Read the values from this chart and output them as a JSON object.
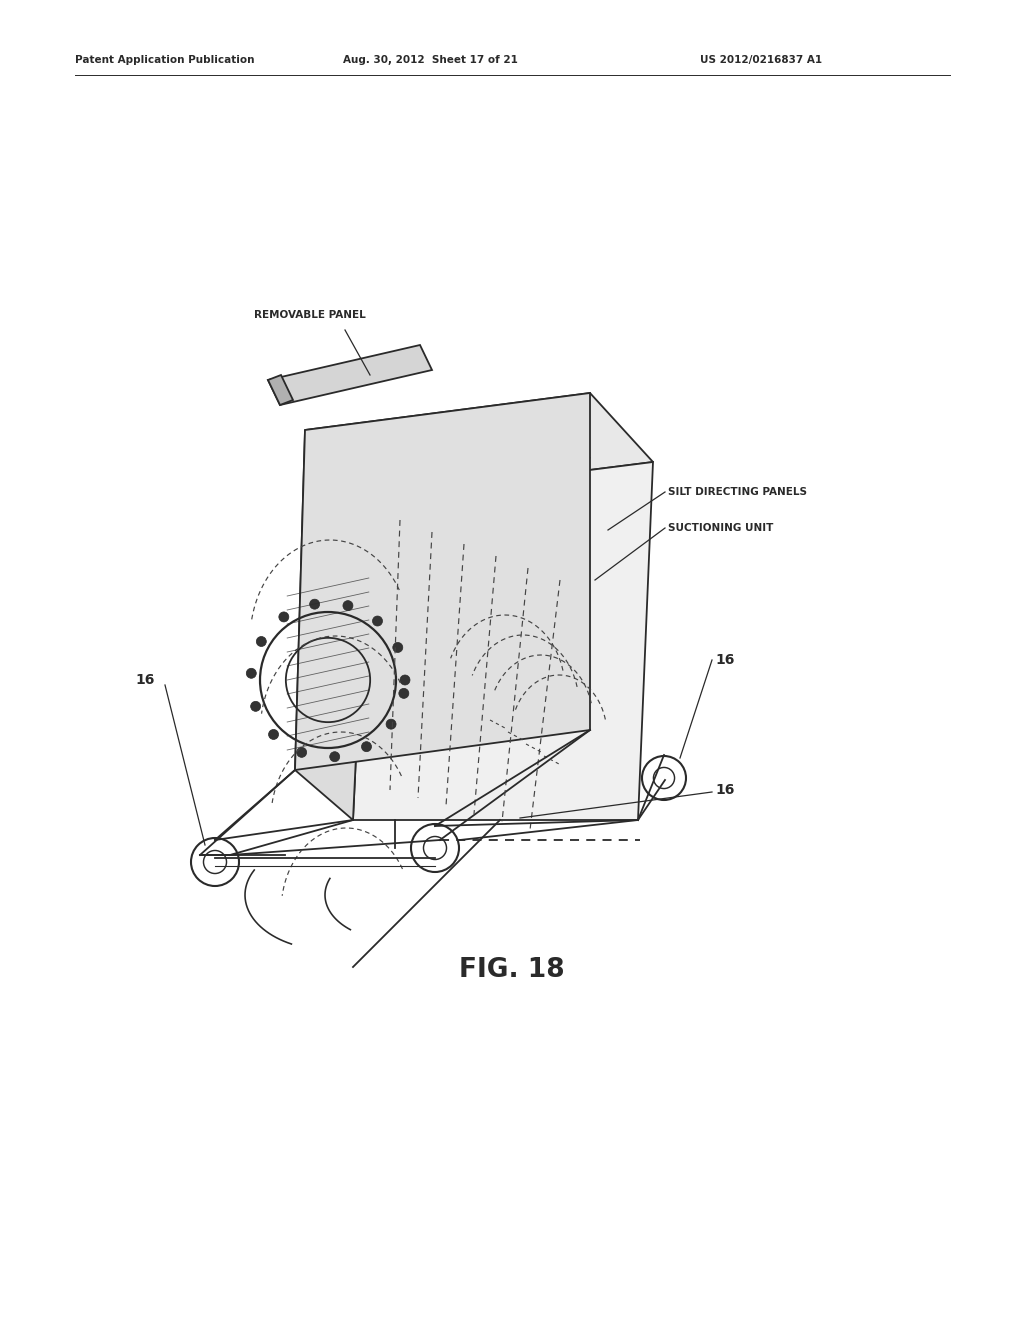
{
  "bg_color": "#ffffff",
  "line_color": "#2a2a2a",
  "dashed_color": "#444444",
  "header_left": "Patent Application Publication",
  "header_mid": "Aug. 30, 2012  Sheet 17 of 21",
  "header_right": "US 2012/0216837 A1",
  "figure_label": "FIG. 18",
  "labels": {
    "removable_panel": "REMOVABLE PANEL",
    "silt_panels": "SILT DIRECTING PANELS",
    "suctioning_unit": "SUCTIONING UNIT",
    "wheel_label": "16"
  },
  "figsize": [
    10.24,
    13.2
  ],
  "dpi": 100
}
